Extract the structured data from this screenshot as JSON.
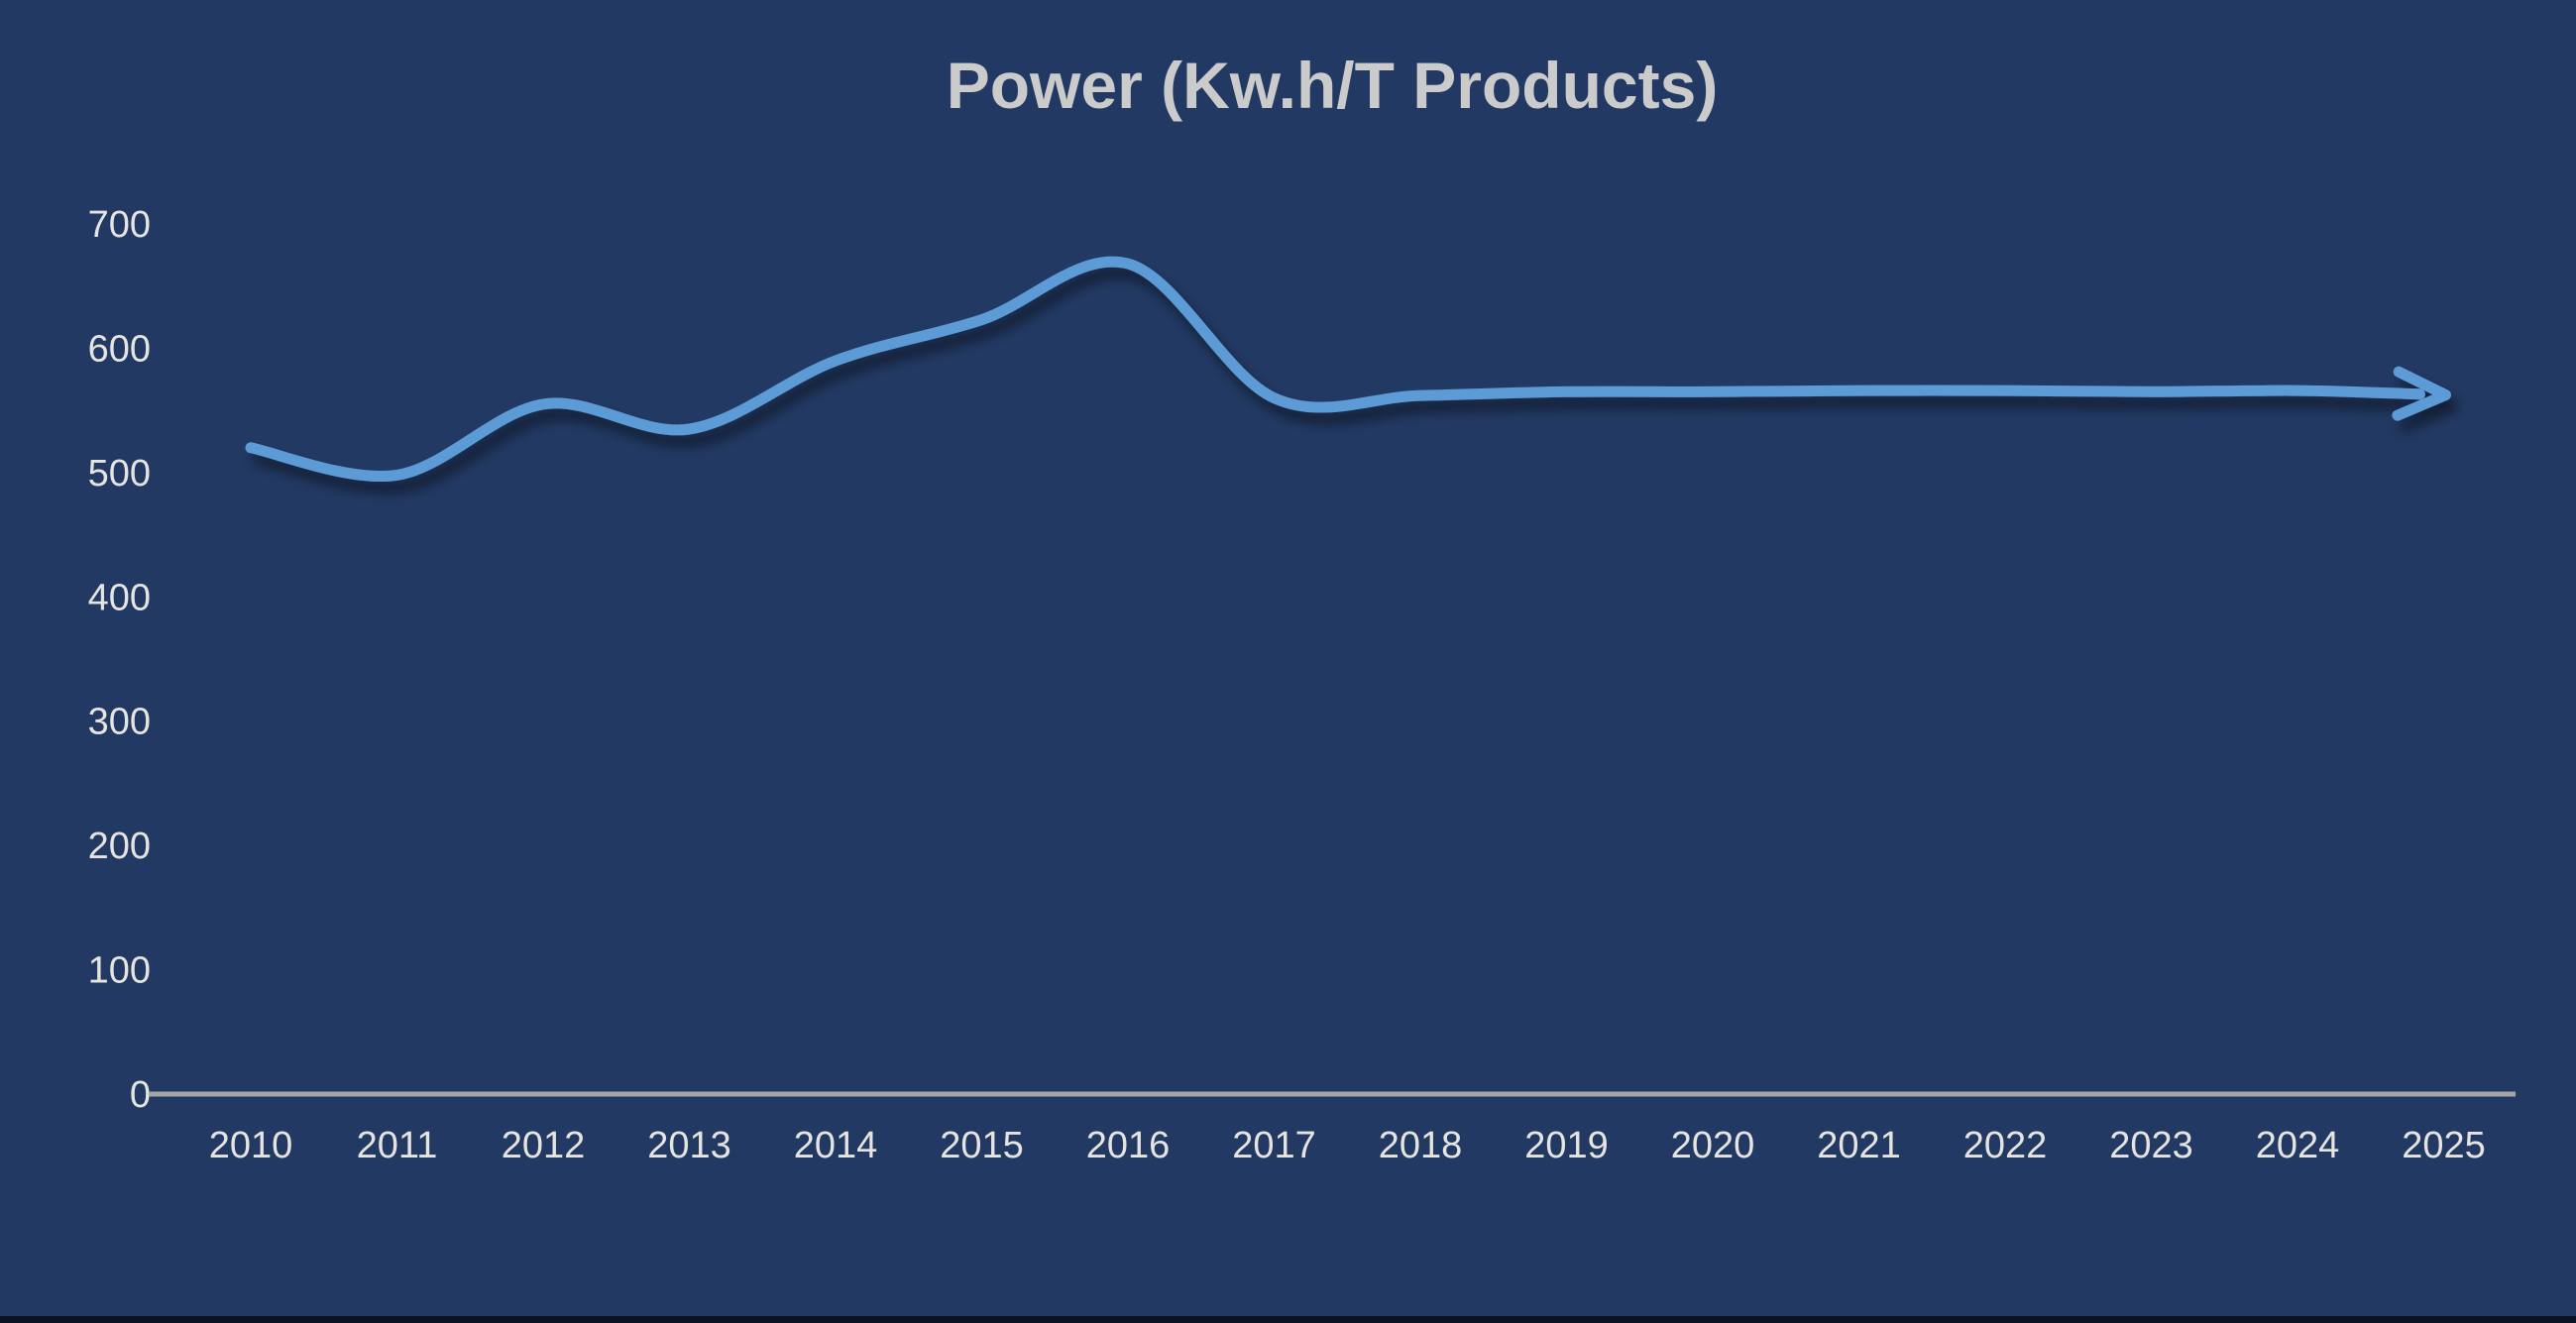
{
  "page": {
    "background_color": "#223963",
    "bottom_edge_color": "#0a1322"
  },
  "chart_data": {
    "type": "line",
    "title": "Power (Kw.h/T Products)",
    "title_color": "#cbcbcb",
    "categories": [
      "2010",
      "2011",
      "2012",
      "2013",
      "2014",
      "2015",
      "2016",
      "2017",
      "2018",
      "2019",
      "2020",
      "2021",
      "2022",
      "2023",
      "2024",
      "2025"
    ],
    "series": [
      {
        "name": "Power (Kw.h/T Products)",
        "values": [
          520,
          498,
          555,
          535,
          590,
          623,
          668,
          560,
          562,
          565,
          565,
          566,
          566,
          565,
          566,
          563
        ]
      }
    ],
    "xlabel": "",
    "ylabel": "",
    "ylim": [
      0,
      700
    ],
    "yticks": [
      0,
      100,
      200,
      300,
      400,
      500,
      600,
      700
    ],
    "grid": false,
    "legend_position": "none",
    "line_color": "#5b9bd5",
    "line_width": 11,
    "line_smooth": true,
    "arrow_end": true,
    "line_shadow": true,
    "axis_line_color": "#a6a6a6",
    "tick_label_color": "#e6e4e1"
  }
}
